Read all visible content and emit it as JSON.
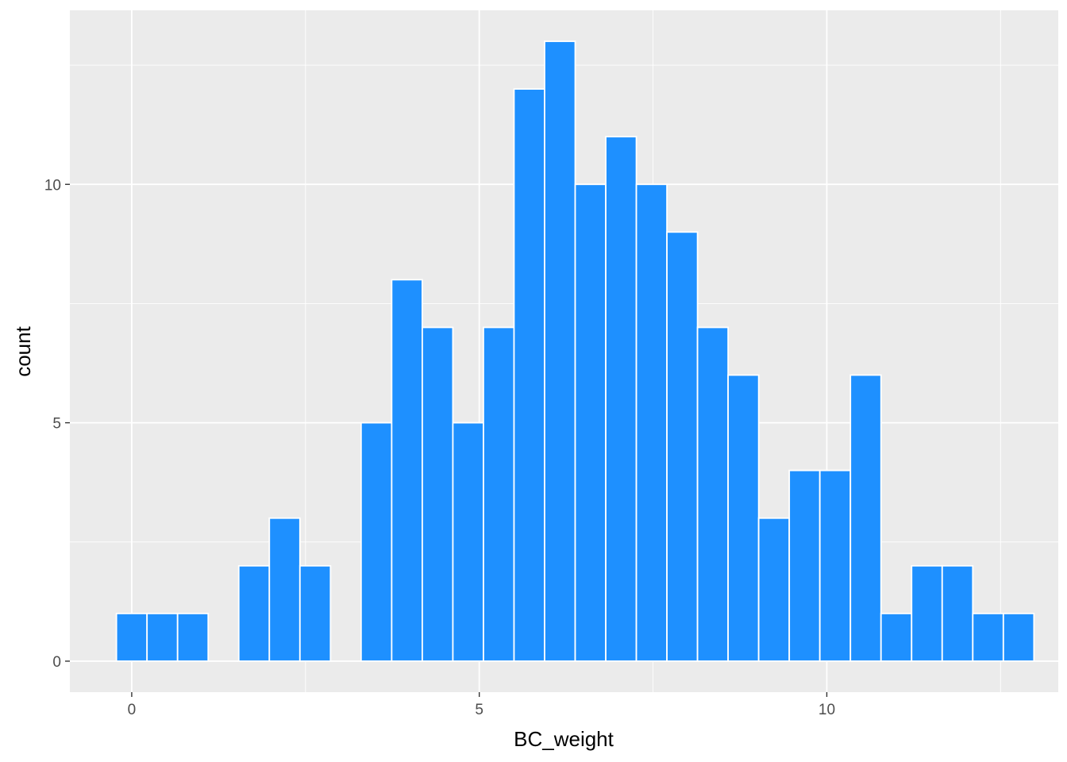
{
  "chart_data": {
    "type": "bar",
    "subtype": "histogram",
    "xlabel": "BC_weight",
    "ylabel": "count",
    "xlim": [
      -0.89,
      13.33
    ],
    "ylim": [
      -0.65,
      13.65
    ],
    "x_ticks": [
      0,
      5,
      10
    ],
    "y_ticks": [
      0,
      5,
      10
    ],
    "grid": true,
    "bin_width": 0.44,
    "bins": [
      {
        "x0": -0.22,
        "count": 1
      },
      {
        "x0": 0.22,
        "count": 1
      },
      {
        "x0": 0.66,
        "count": 1
      },
      {
        "x0": 1.1,
        "count": 0
      },
      {
        "x0": 1.54,
        "count": 2
      },
      {
        "x0": 1.98,
        "count": 3
      },
      {
        "x0": 2.42,
        "count": 2
      },
      {
        "x0": 2.86,
        "count": 0
      },
      {
        "x0": 3.3,
        "count": 5
      },
      {
        "x0": 3.74,
        "count": 8
      },
      {
        "x0": 4.18,
        "count": 7
      },
      {
        "x0": 4.62,
        "count": 5
      },
      {
        "x0": 5.06,
        "count": 7
      },
      {
        "x0": 5.5,
        "count": 12
      },
      {
        "x0": 5.94,
        "count": 13
      },
      {
        "x0": 6.38,
        "count": 10
      },
      {
        "x0": 6.82,
        "count": 11
      },
      {
        "x0": 7.26,
        "count": 10
      },
      {
        "x0": 7.7,
        "count": 9
      },
      {
        "x0": 8.14,
        "count": 7
      },
      {
        "x0": 8.58,
        "count": 6
      },
      {
        "x0": 9.02,
        "count": 3
      },
      {
        "x0": 9.46,
        "count": 4
      },
      {
        "x0": 9.9,
        "count": 4
      },
      {
        "x0": 10.34,
        "count": 6
      },
      {
        "x0": 10.78,
        "count": 1
      },
      {
        "x0": 11.22,
        "count": 2
      },
      {
        "x0": 11.66,
        "count": 2
      },
      {
        "x0": 12.1,
        "count": 1
      },
      {
        "x0": 12.54,
        "count": 1
      }
    ],
    "colors": {
      "bar_fill": "#1E90FF",
      "bar_outline": "#FFFFFF",
      "panel_background": "#EBEBEB",
      "grid": "#FFFFFF",
      "tick_text": "#4D4D4D",
      "axis_title": "#000000"
    }
  }
}
